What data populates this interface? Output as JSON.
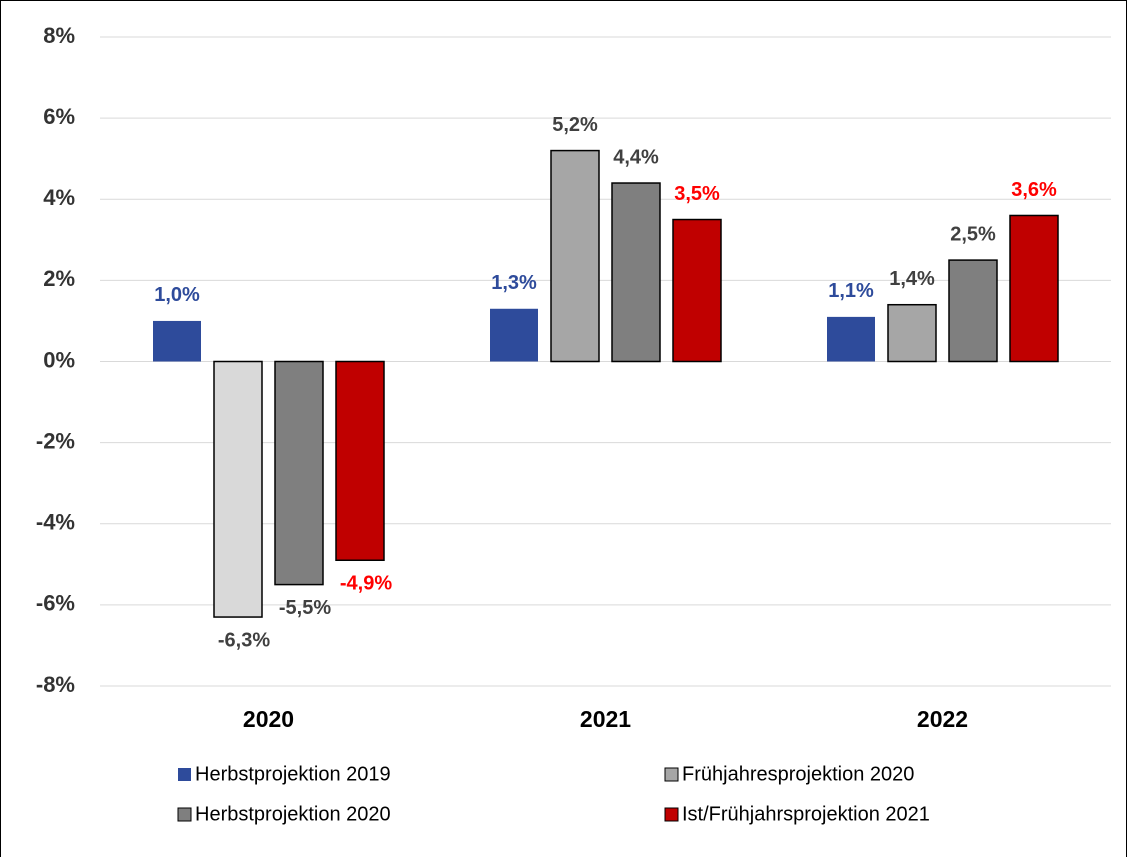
{
  "chart_data": {
    "type": "bar",
    "categories": [
      "2020",
      "2021",
      "2022"
    ],
    "series": [
      {
        "name": "Herbstprojektion 2019",
        "color": "#2e4b9b",
        "label_color": "#2e4b9b",
        "values": [
          1.0,
          1.3,
          1.1
        ],
        "value_labels": [
          "1,0%",
          "1,3%",
          "1,1%"
        ]
      },
      {
        "name": "Frühjahresprojektion 2020",
        "color": "#a6a6a6",
        "colors": [
          "#d9d9d9",
          "#a6a6a6",
          "#a6a6a6"
        ],
        "label_color": "#404040",
        "values": [
          -6.3,
          5.2,
          1.4
        ],
        "value_labels": [
          "-6,3%",
          "5,2%",
          "1,4%"
        ]
      },
      {
        "name": "Herbstprojektion 2020",
        "color": "#7f7f7f",
        "label_color": "#404040",
        "values": [
          -5.5,
          4.4,
          2.5
        ],
        "value_labels": [
          "-5,5%",
          "4,4%",
          "2,5%"
        ]
      },
      {
        "name": "Ist/Frühjahrsprojektion 2021",
        "color": "#c00000",
        "label_color": "#ff0000",
        "values": [
          -4.9,
          3.5,
          3.6
        ],
        "value_labels": [
          "-4,9%",
          "3,5%",
          "3,6%"
        ]
      }
    ],
    "ylim": [
      -8,
      8
    ],
    "yticks": [
      {
        "value": -8,
        "label": "-8%"
      },
      {
        "value": -6,
        "label": "-6%"
      },
      {
        "value": -4,
        "label": "-4%"
      },
      {
        "value": -2,
        "label": "-2%"
      },
      {
        "value": 0,
        "label": "0%"
      },
      {
        "value": 2,
        "label": "2%"
      },
      {
        "value": 4,
        "label": "4%"
      },
      {
        "value": 6,
        "label": "6%"
      },
      {
        "value": 8,
        "label": "8%"
      }
    ],
    "grid": true,
    "legend": "bottom"
  }
}
